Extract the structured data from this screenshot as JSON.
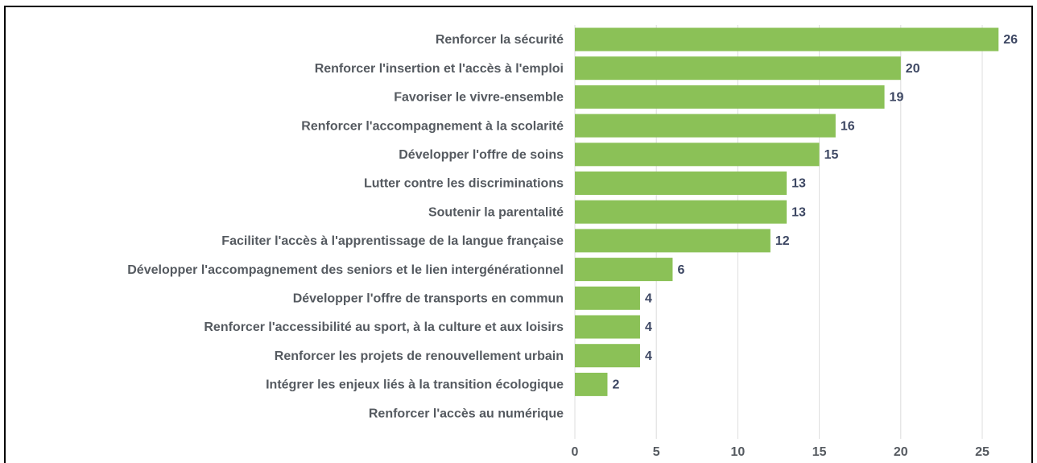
{
  "chart_data": {
    "type": "bar",
    "orientation": "horizontal",
    "categories": [
      "Renforcer la sécurité",
      "Renforcer l'insertion et l'accès à l'emploi",
      "Favoriser le vivre-ensemble",
      "Renforcer l'accompagnement à la scolarité",
      "Développer l'offre de soins",
      "Lutter contre les discriminations",
      "Soutenir la parentalité",
      "Faciliter l'accès à l'apprentissage de la langue française",
      "Développer l'accompagnement des seniors et le lien intergénérationnel",
      "Développer l'offre de transports en commun",
      "Renforcer l'accessibilité au sport, à la culture et aux loisirs",
      "Renforcer les projets de renouvellement urbain",
      "Intégrer les enjeux liés à la transition écologique",
      "Renforcer l'accès au numérique"
    ],
    "values": [
      26,
      20,
      19,
      16,
      15,
      13,
      13,
      12,
      6,
      4,
      4,
      4,
      2,
      0
    ],
    "color": "#8bc157",
    "xlim": [
      0,
      27.5
    ],
    "xticks": [
      0,
      5,
      10,
      15,
      20,
      25
    ],
    "grid": true
  }
}
